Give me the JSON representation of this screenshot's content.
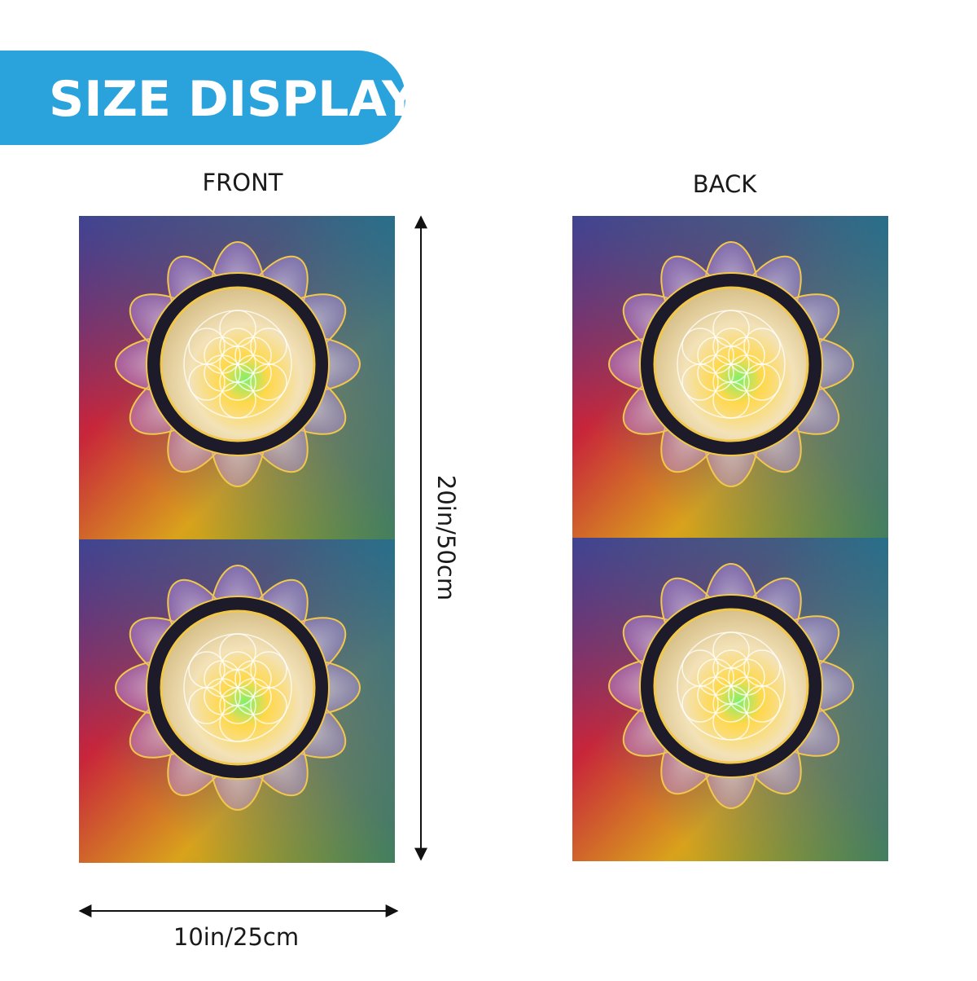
{
  "header": {
    "title": "SIZE DISPLAY"
  },
  "front": {
    "label": "FRONT"
  },
  "back": {
    "label": "BACK"
  },
  "dimensions": {
    "height": "20in/50cm",
    "width": "10in/25cm"
  }
}
